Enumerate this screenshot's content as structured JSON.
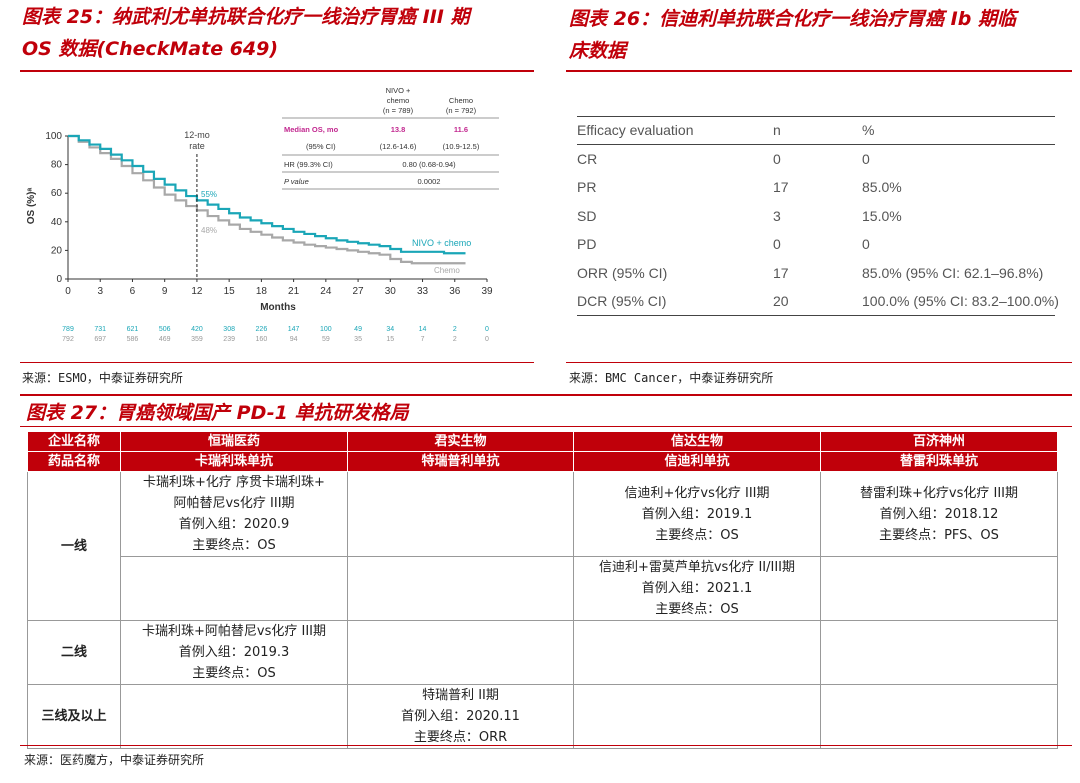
{
  "fig25": {
    "title_line1": "图表 25：纳武利尤单抗联合化疗一线治疗胃癌 III 期",
    "title_line2": "OS 数据(CheckMate 649)",
    "source": "来源：ESMO，中泰证券研究所"
  },
  "fig26": {
    "title_line1": "图表 26：信迪利单抗联合化疗一线治疗胃癌 Ib 期临",
    "title_line2": "床数据",
    "source": "来源：BMC Cancer，中泰证券研究所"
  },
  "fig27": {
    "title": "图表 27：胃癌领域国产 PD-1 单抗研发格局",
    "source": "来源：医药魔方，中泰证券研究所"
  },
  "km": {
    "ylabel": "OS (%)ᵃ",
    "xlabel": "Months",
    "mark_label_1": "12-mo",
    "mark_label_2": "rate",
    "pct_nivo": "55%",
    "pct_chemo": "48%",
    "legend_nivo": "NIVO + chemo",
    "legend_chemo": "Chemo",
    "col_nivo_1": "NIVO +",
    "col_nivo_2": "chemo",
    "col_nivo_3": "(n = 789)",
    "col_chemo_1": "Chemo",
    "col_chemo_2": "(n = 792)",
    "median_label": "Median OS, mo",
    "median_nivo": "13.8",
    "median_chemo": "11.6",
    "ci_label": "(95% CI)",
    "ci_nivo": "(12.6-14.6)",
    "ci_chemo": "(10.9-12.5)",
    "hr_label": "HR (99.3% CI)",
    "hr_value": "0.80 (0.68-0.94)",
    "p_label": "P value",
    "p_value": "0.0002",
    "colors": {
      "nivo": "#1aa6b7",
      "chemo": "#a8a8a8",
      "highlight": "#c2278f"
    }
  },
  "chart_data": {
    "type": "line",
    "title": "",
    "xlabel": "Months",
    "ylabel": "OS (%)ᵃ",
    "xlim": [
      0,
      39
    ],
    "ylim": [
      0,
      100
    ],
    "x_ticks": [
      0,
      3,
      6,
      9,
      12,
      15,
      18,
      21,
      24,
      27,
      30,
      33,
      36,
      39
    ],
    "y_ticks": [
      0,
      20,
      40,
      60,
      80,
      100
    ],
    "series": [
      {
        "name": "NIVO + chemo",
        "color": "#1aa6b7",
        "x": [
          0,
          1,
          2,
          3,
          4,
          5,
          6,
          7,
          8,
          9,
          10,
          11,
          12,
          13,
          14,
          15,
          16,
          17,
          18,
          19,
          20,
          21,
          22,
          23,
          24,
          25,
          26,
          27,
          28,
          29,
          30,
          31,
          32,
          33,
          34,
          35,
          36,
          37
        ],
        "y": [
          100,
          97,
          94,
          91,
          87,
          83,
          79,
          75,
          70,
          66,
          62,
          58,
          55,
          52,
          49,
          46,
          43,
          41,
          39,
          37,
          35,
          33,
          31.5,
          30,
          28.5,
          27,
          26,
          25,
          24,
          23,
          21,
          19,
          19,
          19,
          19,
          18,
          18,
          18
        ]
      },
      {
        "name": "Chemo",
        "color": "#a8a8a8",
        "x": [
          0,
          1,
          2,
          3,
          4,
          5,
          6,
          7,
          8,
          9,
          10,
          11,
          12,
          13,
          14,
          15,
          16,
          17,
          18,
          19,
          20,
          21,
          22,
          23,
          24,
          25,
          26,
          27,
          28,
          29,
          30,
          31,
          32,
          33,
          34,
          35,
          36,
          37
        ],
        "y": [
          100,
          96,
          92,
          88,
          84,
          79,
          74,
          69,
          64,
          59,
          55,
          51,
          48,
          44,
          41,
          38,
          35,
          33,
          31,
          29,
          27,
          25.5,
          24,
          23,
          22,
          21,
          20,
          19,
          18,
          17,
          14,
          12,
          11,
          11,
          11,
          11,
          11,
          11
        ]
      }
    ],
    "at_risk": {
      "times": [
        0,
        3,
        6,
        9,
        12,
        15,
        18,
        21,
        24,
        27,
        30,
        33,
        36,
        39
      ],
      "nivo": [
        "789",
        "731",
        "621",
        "506",
        "420",
        "308",
        "226",
        "147",
        "100",
        "49",
        "34",
        "14",
        "2",
        "0"
      ],
      "chemo": [
        "792",
        "697",
        "586",
        "469",
        "359",
        "239",
        "160",
        "94",
        "59",
        "35",
        "15",
        "7",
        "2",
        "0"
      ]
    }
  },
  "efficacy": {
    "headers": [
      "Efficacy evaluation",
      "n",
      "%"
    ],
    "rows": [
      [
        "CR",
        "0",
        "0"
      ],
      [
        "PR",
        "17",
        "85.0%"
      ],
      [
        "SD",
        "3",
        "15.0%"
      ],
      [
        "PD",
        "0",
        "0"
      ],
      [
        "ORR (95% CI)",
        "17",
        "85.0% (95% CI: 62.1–96.8%)"
      ],
      [
        "DCR (95% CI)",
        "20",
        "100.0% (95% CI: 83.2–100.0%)"
      ]
    ]
  },
  "landscape": {
    "company_label": "企业名称",
    "drug_label": "药品名称",
    "companies": [
      "恒瑞医药",
      "君实生物",
      "信达生物",
      "百济神州"
    ],
    "drugs": [
      "卡瑞利珠单抗",
      "特瑞普利单抗",
      "信迪利单抗",
      "替雷利珠单抗"
    ],
    "line1": "一线",
    "line2": "二线",
    "line3": "三线及以上",
    "hengrui_l1": [
      "卡瑞利珠+化疗 序贯卡瑞利珠+",
      "阿帕替尼vs化疗 III期",
      "首例入组：2020.9",
      "主要终点：OS"
    ],
    "xinda_l1a": [
      "信迪利+化疗vs化疗 III期",
      "首例入组：2019.1",
      "主要终点：OS"
    ],
    "baiji_l1": [
      "替雷利珠+化疗vs化疗 III期",
      "首例入组：2018.12",
      "主要终点：PFS、OS"
    ],
    "xinda_l1b": [
      "信迪利+雷莫芦单抗vs化疗 II/III期",
      "首例入组：2021.1",
      "主要终点：OS"
    ],
    "hengrui_l2": [
      "卡瑞利珠+阿帕替尼vs化疗 III期",
      "首例入组：2019.3",
      "主要终点：OS"
    ],
    "junshi_l3": [
      "特瑞普利 II期",
      "首例入组：2020.11",
      "主要终点：ORR"
    ]
  }
}
